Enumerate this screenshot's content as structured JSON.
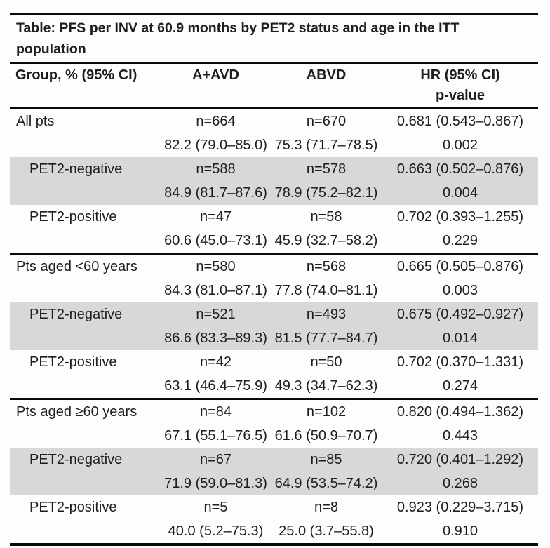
{
  "title": "Table: PFS per INV at 60.9 months by PET2 status and age in the ITT population",
  "columns": {
    "group": "Group, % (95% CI)",
    "aavd": "A+AVD",
    "abvd": "ABVD",
    "hr": "HR (95% CI)",
    "p": "p-value"
  },
  "colors": {
    "shaded_row": "#d8d8d8",
    "rule": "#0a0a0a",
    "text": "#1e1e1e"
  },
  "rows": [
    {
      "group": "All pts",
      "aavd_n": "n=664",
      "aavd_pct": "82.2 (79.0–85.0)",
      "abvd_n": "n=670",
      "abvd_pct": "75.3 (71.7–78.5)",
      "hr": "0.681 (0.543–0.867)",
      "p": "0.002"
    },
    {
      "group": "PET2-negative",
      "aavd_n": "n=588",
      "aavd_pct": "84.9 (81.7–87.6)",
      "abvd_n": "n=578",
      "abvd_pct": "78.9 (75.2–82.1)",
      "hr": "0.663 (0.502–0.876)",
      "p": "0.004"
    },
    {
      "group": "PET2-positive",
      "aavd_n": "n=47",
      "aavd_pct": "60.6 (45.0–73.1)",
      "abvd_n": "n=58",
      "abvd_pct": "45.9 (32.7–58.2)",
      "hr": "0.702 (0.393–1.255)",
      "p": "0.229"
    },
    {
      "group": "Pts aged <60 years",
      "aavd_n": "n=580",
      "aavd_pct": "84.3 (81.0–87.1)",
      "abvd_n": "n=568",
      "abvd_pct": "77.8 (74.0–81.1)",
      "hr": "0.665 (0.505–0.876)",
      "p": "0.003"
    },
    {
      "group": "PET2-negative",
      "aavd_n": "n=521",
      "aavd_pct": "86.6 (83.3–89.3)",
      "abvd_n": "n=493",
      "abvd_pct": "81.5 (77.7–84.7)",
      "hr": "0.675 (0.492–0.927)",
      "p": "0.014"
    },
    {
      "group": "PET2-positive",
      "aavd_n": "n=42",
      "aavd_pct": "63.1 (46.4–75.9)",
      "abvd_n": "n=50",
      "abvd_pct": "49.3 (34.7–62.3)",
      "hr": "0.702 (0.370–1.331)",
      "p": "0.274"
    },
    {
      "group": "Pts aged ≥60 years",
      "aavd_n": "n=84",
      "aavd_pct": "67.1 (55.1–76.5)",
      "abvd_n": "n=102",
      "abvd_pct": "61.6 (50.9–70.7)",
      "hr": "0.820 (0.494–1.362)",
      "p": "0.443"
    },
    {
      "group": "PET2-negative",
      "aavd_n": "n=67",
      "aavd_pct": "71.9 (59.0–81.3)",
      "abvd_n": "n=85",
      "abvd_pct": "64.9 (53.5–74.2)",
      "hr": "0.720 (0.401–1.292)",
      "p": "0.268"
    },
    {
      "group": "PET2-positive",
      "aavd_n": "n=5",
      "aavd_pct": "40.0 (5.2–75.3)",
      "abvd_n": "n=8",
      "abvd_pct": "25.0 (3.7–55.8)",
      "hr": "0.923 (0.229–3.715)",
      "p": "0.910"
    }
  ]
}
